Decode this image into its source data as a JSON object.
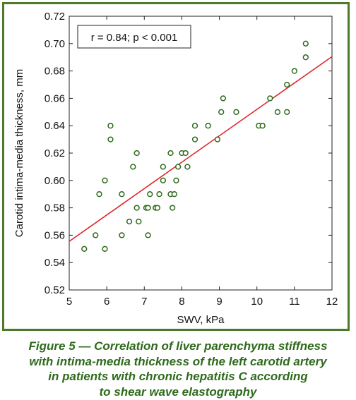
{
  "chart_data": {
    "type": "scatter",
    "xlabel": "SWV, kPa",
    "ylabel": "Carotid intima-media thickness, mm",
    "xlim": [
      5,
      12
    ],
    "ylim": [
      0.52,
      0.72
    ],
    "xticks": [
      "5",
      "6",
      "7",
      "8",
      "9",
      "10",
      "11",
      "12"
    ],
    "yticks": [
      "0.52",
      "0.54",
      "0.56",
      "0.58",
      "0.60",
      "0.62",
      "0.64",
      "0.66",
      "0.68",
      "0.70",
      "0.72"
    ],
    "grid": false,
    "annotation": "r = 0.84; p < 0.001",
    "points": [
      {
        "x": 5.4,
        "y": 0.55
      },
      {
        "x": 5.7,
        "y": 0.56
      },
      {
        "x": 5.8,
        "y": 0.59
      },
      {
        "x": 5.95,
        "y": 0.6
      },
      {
        "x": 5.95,
        "y": 0.55
      },
      {
        "x": 6.1,
        "y": 0.64
      },
      {
        "x": 6.1,
        "y": 0.63
      },
      {
        "x": 6.4,
        "y": 0.59
      },
      {
        "x": 6.4,
        "y": 0.56
      },
      {
        "x": 6.6,
        "y": 0.57
      },
      {
        "x": 6.7,
        "y": 0.61
      },
      {
        "x": 6.8,
        "y": 0.62
      },
      {
        "x": 6.8,
        "y": 0.58
      },
      {
        "x": 6.85,
        "y": 0.57
      },
      {
        "x": 7.05,
        "y": 0.58
      },
      {
        "x": 7.1,
        "y": 0.58
      },
      {
        "x": 7.1,
        "y": 0.56
      },
      {
        "x": 7.15,
        "y": 0.59
      },
      {
        "x": 7.3,
        "y": 0.58
      },
      {
        "x": 7.35,
        "y": 0.58
      },
      {
        "x": 7.4,
        "y": 0.59
      },
      {
        "x": 7.5,
        "y": 0.61
      },
      {
        "x": 7.5,
        "y": 0.6
      },
      {
        "x": 7.7,
        "y": 0.62
      },
      {
        "x": 7.7,
        "y": 0.59
      },
      {
        "x": 7.75,
        "y": 0.58
      },
      {
        "x": 7.8,
        "y": 0.59
      },
      {
        "x": 7.85,
        "y": 0.6
      },
      {
        "x": 7.9,
        "y": 0.61
      },
      {
        "x": 8.0,
        "y": 0.62
      },
      {
        "x": 8.1,
        "y": 0.62
      },
      {
        "x": 8.15,
        "y": 0.61
      },
      {
        "x": 8.35,
        "y": 0.64
      },
      {
        "x": 8.35,
        "y": 0.63
      },
      {
        "x": 8.7,
        "y": 0.64
      },
      {
        "x": 8.95,
        "y": 0.63
      },
      {
        "x": 9.05,
        "y": 0.65
      },
      {
        "x": 9.1,
        "y": 0.66
      },
      {
        "x": 9.45,
        "y": 0.65
      },
      {
        "x": 10.05,
        "y": 0.64
      },
      {
        "x": 10.15,
        "y": 0.64
      },
      {
        "x": 10.35,
        "y": 0.66
      },
      {
        "x": 10.55,
        "y": 0.65
      },
      {
        "x": 10.8,
        "y": 0.65
      },
      {
        "x": 10.8,
        "y": 0.67
      },
      {
        "x": 11.0,
        "y": 0.68
      },
      {
        "x": 11.3,
        "y": 0.69
      },
      {
        "x": 11.3,
        "y": 0.7
      }
    ],
    "trendline": {
      "x": [
        5,
        12
      ],
      "y": [
        0.5555,
        0.6905
      ]
    },
    "colors": {
      "points": "#2e6a1c",
      "trendline": "#e0262a",
      "frame": "#4a7a2a",
      "caption": "#2e6a1c"
    }
  },
  "caption": {
    "lines": [
      "Figure 5 — Correlation of liver parenchyma stiffness",
      "with intima-media thickness of the left carotid artery",
      "in patients with chronic hepatitis C according",
      "to shear wave elastography"
    ]
  }
}
